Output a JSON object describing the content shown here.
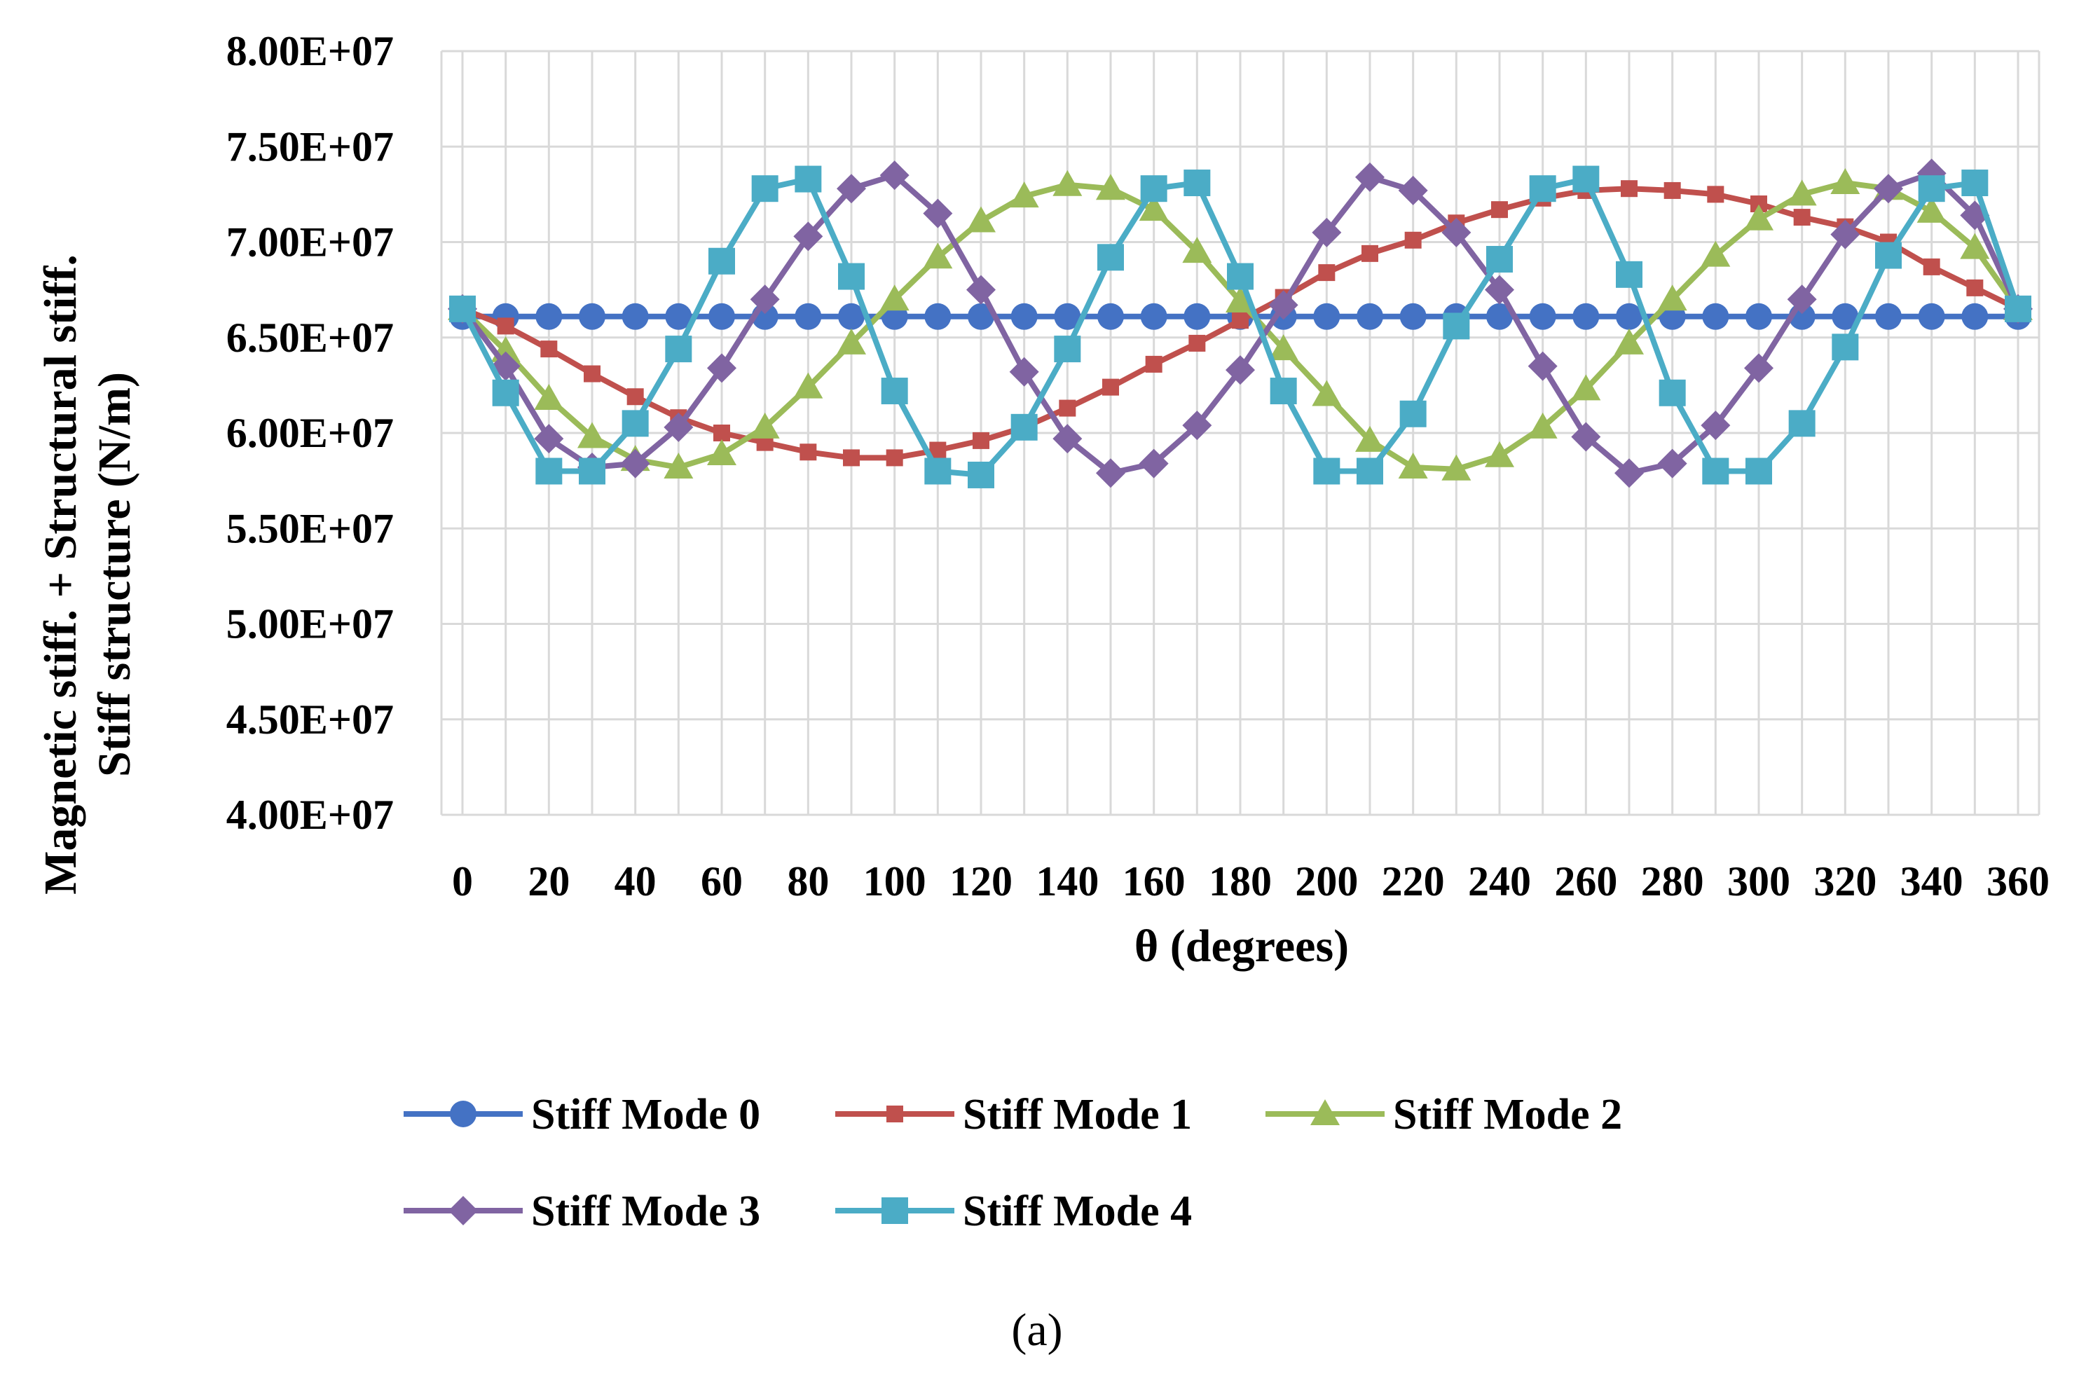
{
  "chart_data": {
    "type": "line",
    "xlabel": "θ (degrees)",
    "ylabel_line1": "Magnetic stiff. + Structural stiff.",
    "ylabel_line2": "Stiff structure  (N/m)",
    "caption": "(a)",
    "xlim": [
      0,
      360
    ],
    "ylim": [
      40000000,
      80000000
    ],
    "y_ticks": [
      40000000,
      45000000,
      50000000,
      55000000,
      60000000,
      65000000,
      70000000,
      75000000,
      80000000
    ],
    "y_tick_labels": [
      "4.00E+07",
      "4.50E+07",
      "5.00E+07",
      "5.50E+07",
      "6.00E+07",
      "6.50E+07",
      "7.00E+07",
      "7.50E+07",
      "8.00E+07"
    ],
    "x_tick_labels": [
      "0",
      "20",
      "40",
      "60",
      "80",
      "100",
      "120",
      "140",
      "160",
      "180",
      "200",
      "220",
      "240",
      "260",
      "280",
      "300",
      "320",
      "340",
      "360"
    ],
    "grid": true,
    "legend_position": "bottom",
    "x": [
      0,
      10,
      20,
      30,
      40,
      50,
      60,
      70,
      80,
      90,
      100,
      110,
      120,
      130,
      140,
      150,
      160,
      170,
      180,
      190,
      200,
      210,
      220,
      230,
      240,
      250,
      260,
      270,
      280,
      290,
      300,
      310,
      320,
      330,
      340,
      350,
      360
    ],
    "series": [
      {
        "name": "Stiff Mode 0",
        "color": "#4472C4",
        "marker": "circle",
        "values": [
          66100000,
          66100000,
          66100000,
          66100000,
          66100000,
          66100000,
          66100000,
          66100000,
          66100000,
          66100000,
          66100000,
          66100000,
          66100000,
          66100000,
          66100000,
          66100000,
          66100000,
          66100000,
          66100000,
          66100000,
          66100000,
          66100000,
          66100000,
          66100000,
          66100000,
          66100000,
          66100000,
          66100000,
          66100000,
          66100000,
          66100000,
          66100000,
          66100000,
          66100000,
          66100000,
          66100000,
          66100000
        ]
      },
      {
        "name": "Stiff Mode 1",
        "color": "#C0504D",
        "marker": "square-small",
        "values": [
          66500000,
          65600000,
          64400000,
          63100000,
          61900000,
          60800000,
          60000000,
          59500000,
          59000000,
          58700000,
          58700000,
          59100000,
          59600000,
          60300000,
          61300000,
          62400000,
          63600000,
          64700000,
          65900000,
          67100000,
          68400000,
          69400000,
          70100000,
          71000000,
          71700000,
          72300000,
          72700000,
          72800000,
          72700000,
          72500000,
          72000000,
          71300000,
          70800000,
          70000000,
          68700000,
          67600000,
          66500000
        ]
      },
      {
        "name": "Stiff Mode 2",
        "color": "#9BBB59",
        "marker": "triangle",
        "values": [
          66500000,
          64300000,
          61800000,
          59800000,
          58600000,
          58200000,
          58900000,
          60300000,
          62400000,
          64700000,
          67000000,
          69200000,
          71100000,
          72400000,
          73000000,
          72800000,
          71700000,
          69500000,
          66900000,
          64400000,
          62000000,
          59600000,
          58200000,
          58100000,
          58800000,
          60300000,
          62300000,
          64700000,
          67000000,
          69300000,
          71200000,
          72500000,
          73100000,
          72800000,
          71600000,
          69700000,
          66500000
        ]
      },
      {
        "name": "Stiff Mode 3",
        "color": "#8064A2",
        "marker": "diamond",
        "values": [
          66500000,
          63500000,
          59700000,
          58200000,
          58400000,
          60300000,
          63400000,
          67000000,
          70300000,
          72800000,
          73500000,
          71500000,
          67500000,
          63200000,
          59700000,
          57900000,
          58400000,
          60400000,
          63300000,
          66700000,
          70500000,
          73400000,
          72700000,
          70500000,
          67500000,
          63500000,
          59800000,
          57900000,
          58400000,
          60400000,
          63400000,
          67000000,
          70400000,
          72800000,
          73600000,
          71400000,
          66500000
        ]
      },
      {
        "name": "Stiff Mode 4",
        "color": "#4BACC6",
        "marker": "square",
        "values": [
          66500000,
          62100000,
          58000000,
          58000000,
          60500000,
          64400000,
          69000000,
          72800000,
          73300000,
          68200000,
          62200000,
          58000000,
          57800000,
          60300000,
          64400000,
          69200000,
          72800000,
          73100000,
          68200000,
          62200000,
          58000000,
          58000000,
          61000000,
          65600000,
          69100000,
          72800000,
          73300000,
          68300000,
          62100000,
          58000000,
          58000000,
          60500000,
          64500000,
          69300000,
          72800000,
          73100000,
          66500000
        ]
      }
    ]
  }
}
